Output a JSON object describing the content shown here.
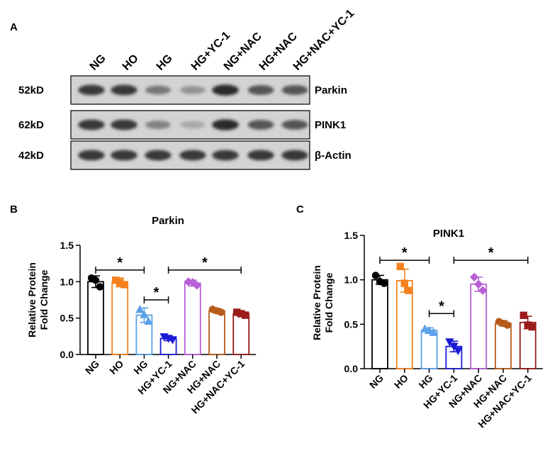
{
  "panels": {
    "a": "A",
    "b": "B",
    "c": "C"
  },
  "blot": {
    "lanes": [
      "NG",
      "HO",
      "HG",
      "HG+YC-1",
      "NG+NAC",
      "HG+NAC",
      "HG+NAC+YC-1"
    ],
    "rows": [
      {
        "mw": "52kD",
        "protein": "Parkin",
        "intensities": [
          0.85,
          0.85,
          0.55,
          0.42,
          0.92,
          0.72,
          0.72
        ]
      },
      {
        "mw": "62kD",
        "protein": "PINK1",
        "intensities": [
          0.85,
          0.85,
          0.5,
          0.32,
          0.92,
          0.72,
          0.72
        ]
      },
      {
        "mw": "42kD",
        "protein": "β-Actin",
        "intensities": [
          0.85,
          0.85,
          0.85,
          0.85,
          0.85,
          0.85,
          0.85
        ]
      }
    ]
  },
  "chart_data": [
    {
      "type": "bar",
      "title": "Parkin",
      "ylabel": "Relative Protein Fold Change",
      "ylabel_lines": [
        "Relative Protein",
        "Fold Change"
      ],
      "ylim": [
        0,
        1.5
      ],
      "yticks": [
        "0.0",
        "0.5",
        "1.0",
        "1.5"
      ],
      "ytick_values": [
        0,
        0.5,
        1.0,
        1.5
      ],
      "categories": [
        "NG",
        "HO",
        "HG",
        "HG+YC-1",
        "NG+NAC",
        "HG+NAC",
        "HG+NAC+YC-1"
      ],
      "values": [
        1.0,
        0.99,
        0.54,
        0.22,
        0.98,
        0.6,
        0.56
      ],
      "errors": [
        0.08,
        0.06,
        0.1,
        0.03,
        0.04,
        0.03,
        0.03
      ],
      "points": [
        [
          1.05,
          0.93,
          1.02
        ],
        [
          1.02,
          0.96,
          0.99
        ],
        [
          0.62,
          0.46,
          0.55
        ],
        [
          0.24,
          0.2,
          0.22
        ],
        [
          1.0,
          0.95,
          0.99
        ],
        [
          0.62,
          0.58,
          0.6
        ],
        [
          0.58,
          0.54,
          0.56
        ]
      ],
      "markers": [
        "circle",
        "square",
        "triangle-up",
        "triangle-down",
        "diamond",
        "circle",
        "square"
      ],
      "colors": [
        "#000000",
        "#f5821f",
        "#5aa2e8",
        "#1a1ad6",
        "#b65fd6",
        "#b85a1a",
        "#9b1b1b"
      ],
      "significance": [
        {
          "from": 0,
          "to": 2,
          "y": 1.16,
          "label": "*"
        },
        {
          "from": 3,
          "to": 6,
          "y": 1.16,
          "label": "*"
        },
        {
          "from": 2,
          "to": 3,
          "y": 0.75,
          "label": "*"
        }
      ]
    },
    {
      "type": "bar",
      "title": "PINK1",
      "ylabel": "Relative Protein Fold Change",
      "ylabel_lines": [
        "Relative Protein",
        "Fold Change"
      ],
      "ylim": [
        0,
        1.5
      ],
      "yticks": [
        "0.0",
        "0.5",
        "1.0",
        "1.5"
      ],
      "ytick_values": [
        0,
        0.5,
        1.0,
        1.5
      ],
      "categories": [
        "NG",
        "HO",
        "HG",
        "HG+YC-1",
        "NG+NAC",
        "HG+NAC",
        "HG+NAC+YC-1"
      ],
      "values": [
        1.0,
        0.99,
        0.43,
        0.25,
        0.95,
        0.51,
        0.52
      ],
      "errors": [
        0.05,
        0.13,
        0.03,
        0.06,
        0.08,
        0.03,
        0.07
      ],
      "points": [
        [
          1.05,
          0.96,
          0.98
        ],
        [
          1.15,
          0.88,
          0.96
        ],
        [
          0.45,
          0.41,
          0.43
        ],
        [
          0.3,
          0.2,
          0.25
        ],
        [
          1.03,
          0.88,
          0.95
        ],
        [
          0.53,
          0.49,
          0.51
        ],
        [
          0.6,
          0.47,
          0.49
        ]
      ],
      "markers": [
        "circle",
        "square",
        "triangle-up",
        "triangle-down",
        "diamond",
        "circle",
        "square"
      ],
      "colors": [
        "#000000",
        "#f5821f",
        "#5aa2e8",
        "#1a1ad6",
        "#b65fd6",
        "#b85a1a",
        "#9b1b1b"
      ],
      "significance": [
        {
          "from": 0,
          "to": 2,
          "y": 1.22,
          "label": "*"
        },
        {
          "from": 3,
          "to": 6,
          "y": 1.22,
          "label": "*"
        },
        {
          "from": 2,
          "to": 3,
          "y": 0.62,
          "label": "*"
        }
      ]
    }
  ]
}
